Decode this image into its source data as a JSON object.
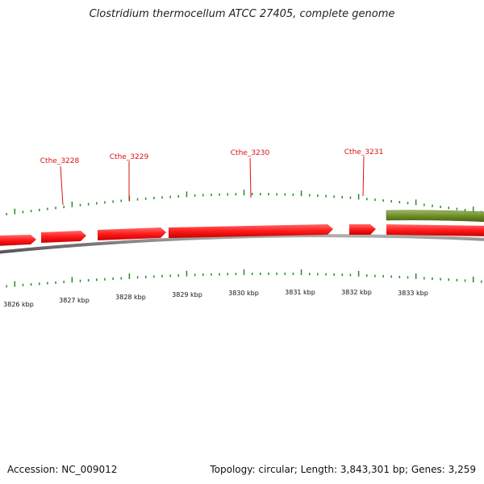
{
  "title": "Clostridium thermocellum ATCC 27405, complete genome",
  "footer": {
    "accession": "Accession: NC_009012",
    "summary": "Topology: circular; Length: 3,843,301 bp; Genes: 3,259"
  },
  "colors": {
    "cds": "#ee1111",
    "cds_label": "#dd1111",
    "other_feature": "#6b8e23",
    "tick": "#228b22",
    "backbone": "#888888"
  },
  "gene_labels": [
    "Cthe_3228",
    "Cthe_3229",
    "Cthe_3230",
    "Cthe_3231"
  ],
  "scale_labels": [
    "3826 kbp",
    "3827 kbp",
    "3828 kbp",
    "3829 kbp",
    "3830 kbp",
    "3831 kbp",
    "3832 kbp",
    "3833 kbp"
  ]
}
